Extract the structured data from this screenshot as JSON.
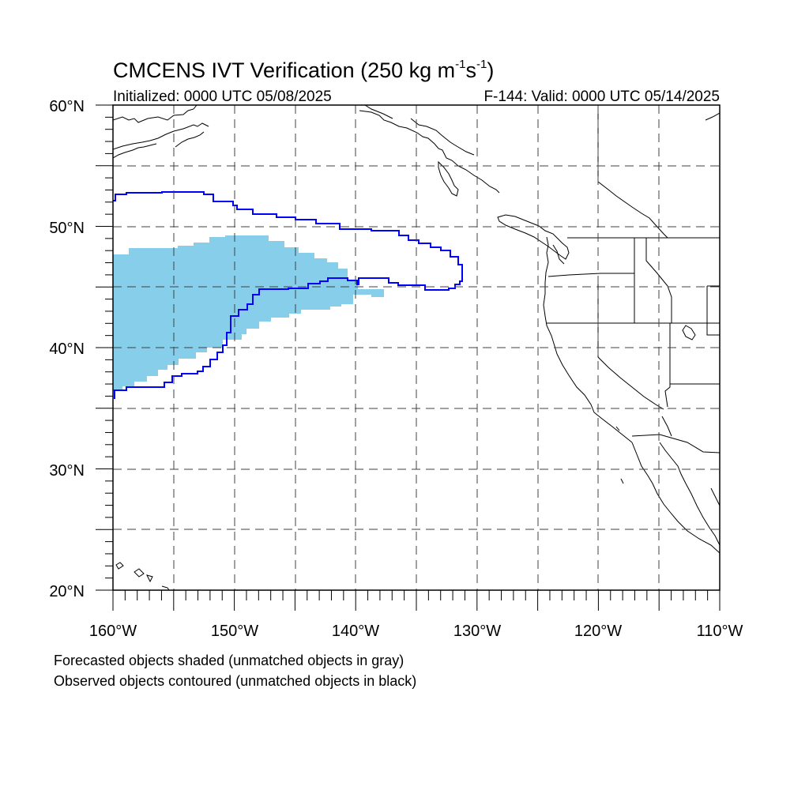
{
  "title": {
    "prefix": "CMCENS IVT Verification (250 kg m",
    "exp1": "-1",
    "mid": "s",
    "exp2": "-1",
    "suffix": ")"
  },
  "subtitle_left": "Initialized: 0000 UTC 05/08/2025",
  "subtitle_right": "F-144: Valid: 0000 UTC 05/14/2025",
  "map": {
    "lon_range": [
      -160,
      -110
    ],
    "lat_range": [
      20,
      60
    ],
    "gridlines": "dashed every 5 degrees",
    "lat_labels": [
      "60°N",
      "50°N",
      "40°N",
      "30°N",
      "20°N"
    ],
    "lon_labels": [
      "160°W",
      "150°W",
      "140°W",
      "130°W",
      "120°W",
      "110°W"
    ],
    "colors": {
      "forecast_fill": "#87CEEB",
      "observed_contour": "#0000FF",
      "coastline": "#000000",
      "grid": "#404040"
    }
  },
  "footnotes": {
    "line1": "Forecasted objects shaded (unmatched objects in gray)",
    "line2": "Observed objects contoured (unmatched objects in black)"
  }
}
